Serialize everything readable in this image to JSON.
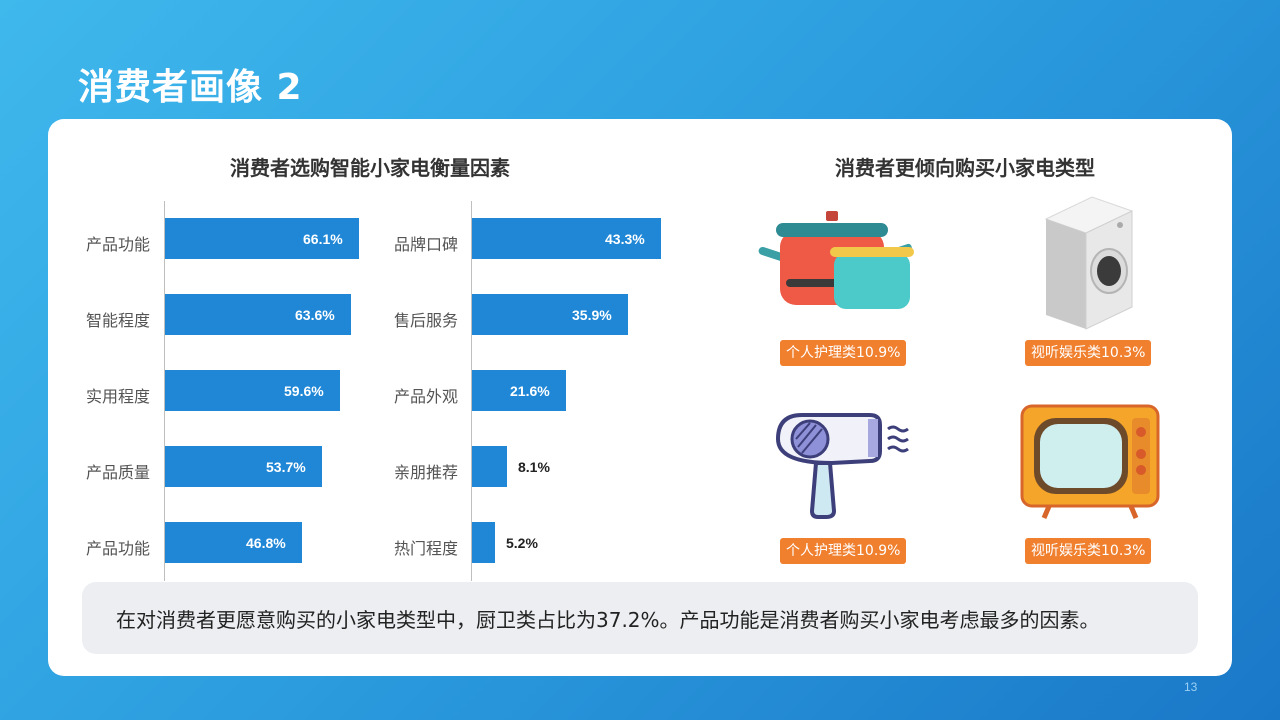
{
  "slide": {
    "title": "消费者画像 2",
    "page_number": "13"
  },
  "left_chart_title": "消费者选购智能小家电衡量因素",
  "right_section_title": "消费者更倾向购买小家电类型",
  "chart_data": [
    {
      "type": "bar",
      "orientation": "horizontal",
      "categories": [
        "产品功能",
        "智能程度",
        "实用程度",
        "产品质量",
        "产品功能"
      ],
      "values": [
        66.1,
        63.6,
        59.6,
        53.7,
        46.8
      ],
      "value_labels": [
        "66.1%",
        "63.6%",
        "59.6%",
        "53.7%",
        "46.8%"
      ],
      "xlim": [
        0,
        70
      ],
      "grid": false,
      "bar_color": "#1f87d6"
    },
    {
      "type": "bar",
      "orientation": "horizontal",
      "categories": [
        "品牌口碑",
        "售后服务",
        "产品外观",
        "亲朋推荐",
        "热门程度"
      ],
      "values": [
        43.3,
        35.9,
        21.6,
        8.1,
        5.2
      ],
      "value_labels": [
        "43.3%",
        "35.9%",
        "21.6%",
        "8.1%",
        "5.2%"
      ],
      "xlim": [
        0,
        45
      ],
      "grid": false,
      "bar_color": "#1f87d6"
    }
  ],
  "appliances": [
    {
      "icon": "cooking-pot-icon",
      "label": "个人护理类10.9%"
    },
    {
      "icon": "washing-machine-icon",
      "label": "视听娱乐类10.3%"
    },
    {
      "icon": "hair-dryer-icon",
      "label": "个人护理类10.9%"
    },
    {
      "icon": "retro-tv-icon",
      "label": "视听娱乐类10.3%"
    }
  ],
  "summary": "在对消费者更愿意购买的小家电类型中，厨卫类占比为37.2%。产品功能是消费者购买小家电考虑最多的因素。",
  "colors": {
    "accent_bar": "#1f87d6",
    "tag_orange": "#f07f2e",
    "background_from": "#3fb8ec",
    "background_to": "#1a78c8"
  }
}
